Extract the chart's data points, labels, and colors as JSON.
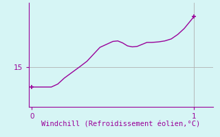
{
  "title": "",
  "xlabel": "Windchill (Refroidissement éolien,°C)",
  "ylabel": "",
  "background_color": "#d6f5f5",
  "line_color": "#990099",
  "grid_color": "#b0b0b0",
  "spine_color": "#990099",
  "x_data": [
    0.0,
    0.04,
    0.08,
    0.12,
    0.16,
    0.2,
    0.25,
    0.3,
    0.34,
    0.38,
    0.42,
    0.46,
    0.5,
    0.53,
    0.56,
    0.59,
    0.62,
    0.65,
    0.68,
    0.71,
    0.74,
    0.78,
    0.82,
    0.86,
    0.9,
    0.94,
    0.97,
    1.0
  ],
  "y_data": [
    13.0,
    13.0,
    13.0,
    13.0,
    13.3,
    13.9,
    14.5,
    15.1,
    15.6,
    16.3,
    17.0,
    17.3,
    17.6,
    17.65,
    17.45,
    17.15,
    17.05,
    17.1,
    17.3,
    17.5,
    17.5,
    17.55,
    17.65,
    17.85,
    18.3,
    18.9,
    19.5,
    20.1
  ],
  "xlim": [
    -0.02,
    1.12
  ],
  "ylim": [
    11.0,
    21.5
  ],
  "yticks": [
    15
  ],
  "xticks": [
    0,
    1
  ],
  "xlabel_fontsize": 7.5,
  "tick_fontsize": 7.5,
  "marker_size": 5,
  "line_width": 1.0
}
